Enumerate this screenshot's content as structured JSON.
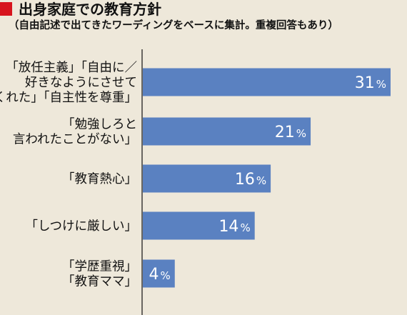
{
  "header": {
    "title": "出身家庭での教育方針",
    "subtitle": "（自由記述で出てきたワーディングをベースに集計。重複回答もあり）"
  },
  "colors": {
    "background": "#eee8da",
    "bar": "#5a81c1",
    "title_mark": "#d7141d"
  },
  "chart_data": {
    "type": "bar",
    "orientation": "horizontal",
    "title": "出身家庭での教育方針",
    "subtitle": "（自由記述で出てきたワーディングをベースに集計。重複回答もあり）",
    "unit": "%",
    "categories": [
      [
        "「放任主義」「自由に／",
        "好きなようにさせて",
        "くれた」「自主性を尊重」"
      ],
      [
        "「勉強しろと",
        "言われたことがない」"
      ],
      [
        "「教育熱心」"
      ],
      [
        "「しつけに厳しい」"
      ],
      [
        "「学歴重視」",
        "「教育ママ」"
      ]
    ],
    "values": [
      31,
      21,
      16,
      14,
      4
    ],
    "xlim": [
      0,
      32
    ],
    "grid": false,
    "legend": "none"
  }
}
